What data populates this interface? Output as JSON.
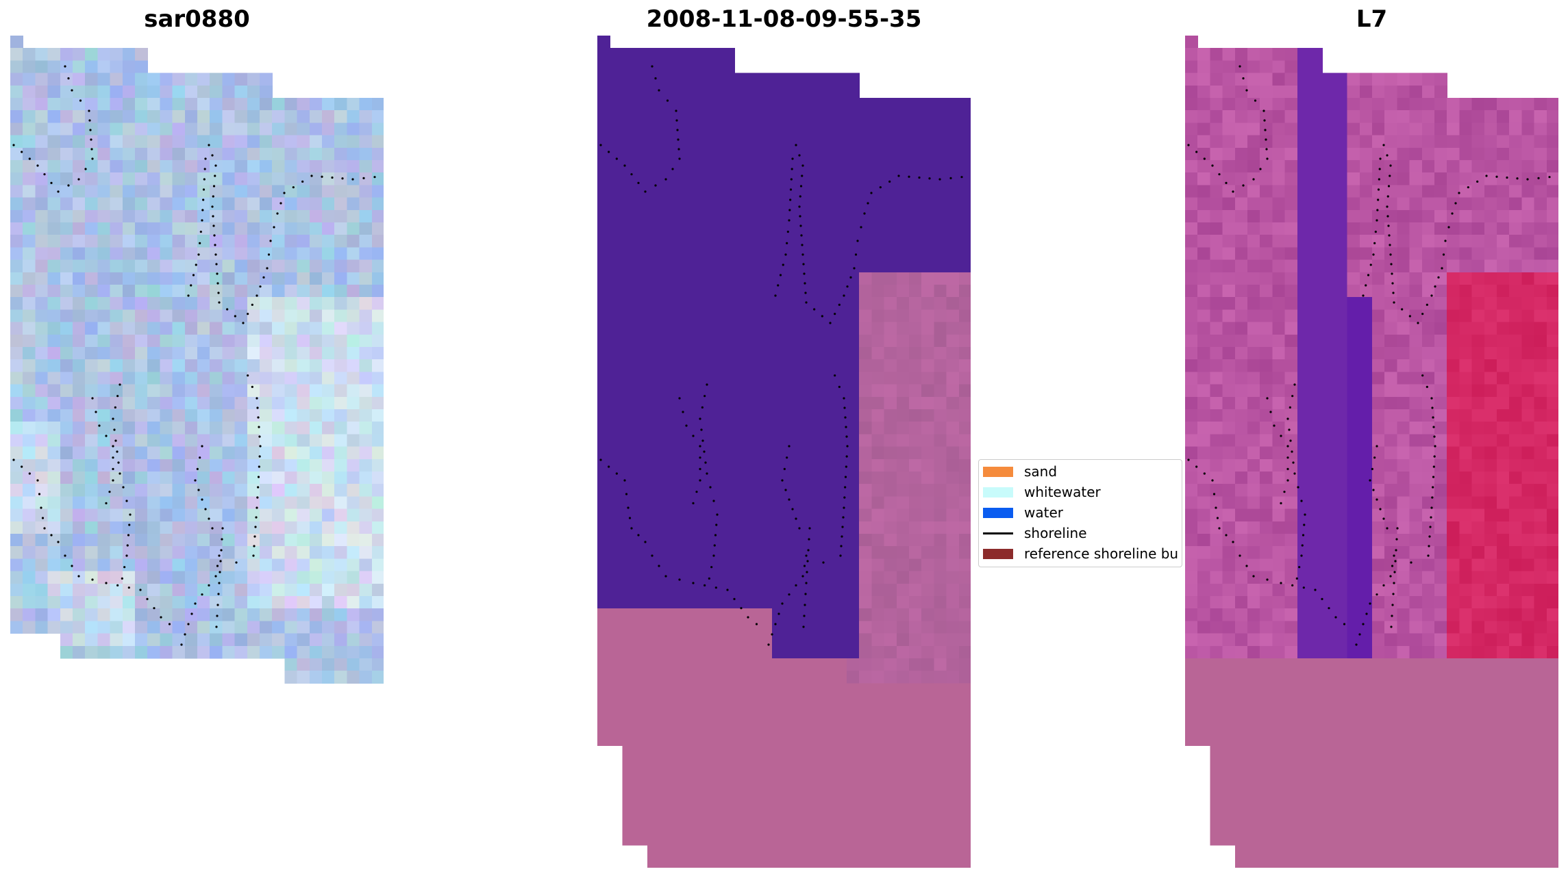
{
  "panels": [
    {
      "title": "sar0880",
      "kind": "rgb-image"
    },
    {
      "title": "2008-11-08-09-55-35",
      "kind": "classified-image"
    },
    {
      "title": "L7",
      "kind": "index-image"
    }
  ],
  "legend": {
    "items": [
      {
        "label": "sand",
        "color": "#f58b3c",
        "marker": "patch"
      },
      {
        "label": "whitewater",
        "color": "#c8fbfb",
        "marker": "patch"
      },
      {
        "label": "water",
        "color": "#0a5cf0",
        "marker": "patch"
      },
      {
        "label": "shoreline",
        "color": "#000000",
        "marker": "line"
      },
      {
        "label": "reference shoreline bu",
        "color": "#8c2b2b",
        "marker": "patch"
      }
    ]
  },
  "colors": {
    "water_class": "#4f2296",
    "nodata_background": "#b96596",
    "shoreline_points": "#000000"
  }
}
